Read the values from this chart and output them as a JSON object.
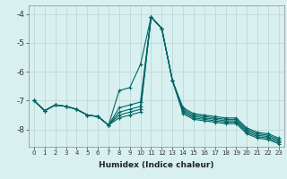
{
  "xlabel": "Humidex (Indice chaleur)",
  "bg_color": "#d8f0f0",
  "grid_color": "#c0d8d8",
  "line_color": "#006666",
  "xlim": [
    -0.5,
    23.5
  ],
  "ylim": [
    -8.6,
    -3.7
  ],
  "yticks": [
    -8,
    -7,
    -6,
    -5,
    -4
  ],
  "xticks": [
    0,
    1,
    2,
    3,
    4,
    5,
    6,
    7,
    8,
    9,
    10,
    11,
    12,
    13,
    14,
    15,
    16,
    17,
    18,
    19,
    20,
    21,
    22,
    23
  ],
  "lines": [
    {
      "x": [
        0,
        1,
        2,
        3,
        4,
        5,
        6,
        7,
        8,
        9,
        10,
        11,
        12,
        13,
        14,
        15,
        16,
        17,
        18,
        19,
        20,
        21,
        22,
        23
      ],
      "y": [
        -7.0,
        -7.35,
        -7.15,
        -7.2,
        -7.3,
        -7.5,
        -7.55,
        -7.85,
        -6.65,
        -6.55,
        -5.75,
        -4.1,
        -4.5,
        -6.3,
        -7.25,
        -7.45,
        -7.5,
        -7.55,
        -7.6,
        -7.6,
        -7.95,
        -8.1,
        -8.15,
        -8.3
      ]
    },
    {
      "x": [
        0,
        1,
        2,
        3,
        4,
        5,
        6,
        7,
        8,
        9,
        10,
        11,
        12,
        13,
        14,
        15,
        16,
        17,
        18,
        19,
        20,
        21,
        22,
        23
      ],
      "y": [
        -7.0,
        -7.35,
        -7.15,
        -7.2,
        -7.3,
        -7.5,
        -7.55,
        -7.85,
        -7.25,
        -7.15,
        -7.05,
        -4.1,
        -4.5,
        -6.3,
        -7.3,
        -7.5,
        -7.55,
        -7.6,
        -7.65,
        -7.65,
        -8.0,
        -8.15,
        -8.2,
        -8.35
      ]
    },
    {
      "x": [
        0,
        1,
        2,
        3,
        4,
        5,
        6,
        7,
        8,
        9,
        10,
        11,
        12,
        13,
        14,
        15,
        16,
        17,
        18,
        19,
        20,
        21,
        22,
        23
      ],
      "y": [
        -7.0,
        -7.35,
        -7.15,
        -7.2,
        -7.3,
        -7.5,
        -7.55,
        -7.85,
        -7.4,
        -7.3,
        -7.2,
        -4.1,
        -4.5,
        -6.3,
        -7.35,
        -7.55,
        -7.6,
        -7.65,
        -7.7,
        -7.7,
        -8.05,
        -8.2,
        -8.25,
        -8.4
      ]
    },
    {
      "x": [
        0,
        1,
        2,
        3,
        4,
        5,
        6,
        7,
        8,
        9,
        10,
        11,
        12,
        13,
        14,
        15,
        16,
        17,
        18,
        19,
        20,
        21,
        22,
        23
      ],
      "y": [
        -7.0,
        -7.35,
        -7.15,
        -7.2,
        -7.3,
        -7.5,
        -7.55,
        -7.85,
        -7.5,
        -7.4,
        -7.3,
        -4.1,
        -4.5,
        -6.3,
        -7.4,
        -7.6,
        -7.65,
        -7.7,
        -7.75,
        -7.75,
        -8.1,
        -8.25,
        -8.3,
        -8.45
      ]
    },
    {
      "x": [
        0,
        1,
        2,
        3,
        4,
        5,
        6,
        7,
        8,
        9,
        10,
        11,
        12,
        13,
        14,
        15,
        16,
        17,
        18,
        19,
        20,
        21,
        22,
        23
      ],
      "y": [
        -7.0,
        -7.35,
        -7.15,
        -7.2,
        -7.3,
        -7.5,
        -7.55,
        -7.85,
        -7.6,
        -7.5,
        -7.4,
        -4.1,
        -4.5,
        -6.3,
        -7.45,
        -7.65,
        -7.7,
        -7.75,
        -7.8,
        -7.8,
        -8.15,
        -8.3,
        -8.35,
        -8.5
      ]
    }
  ]
}
